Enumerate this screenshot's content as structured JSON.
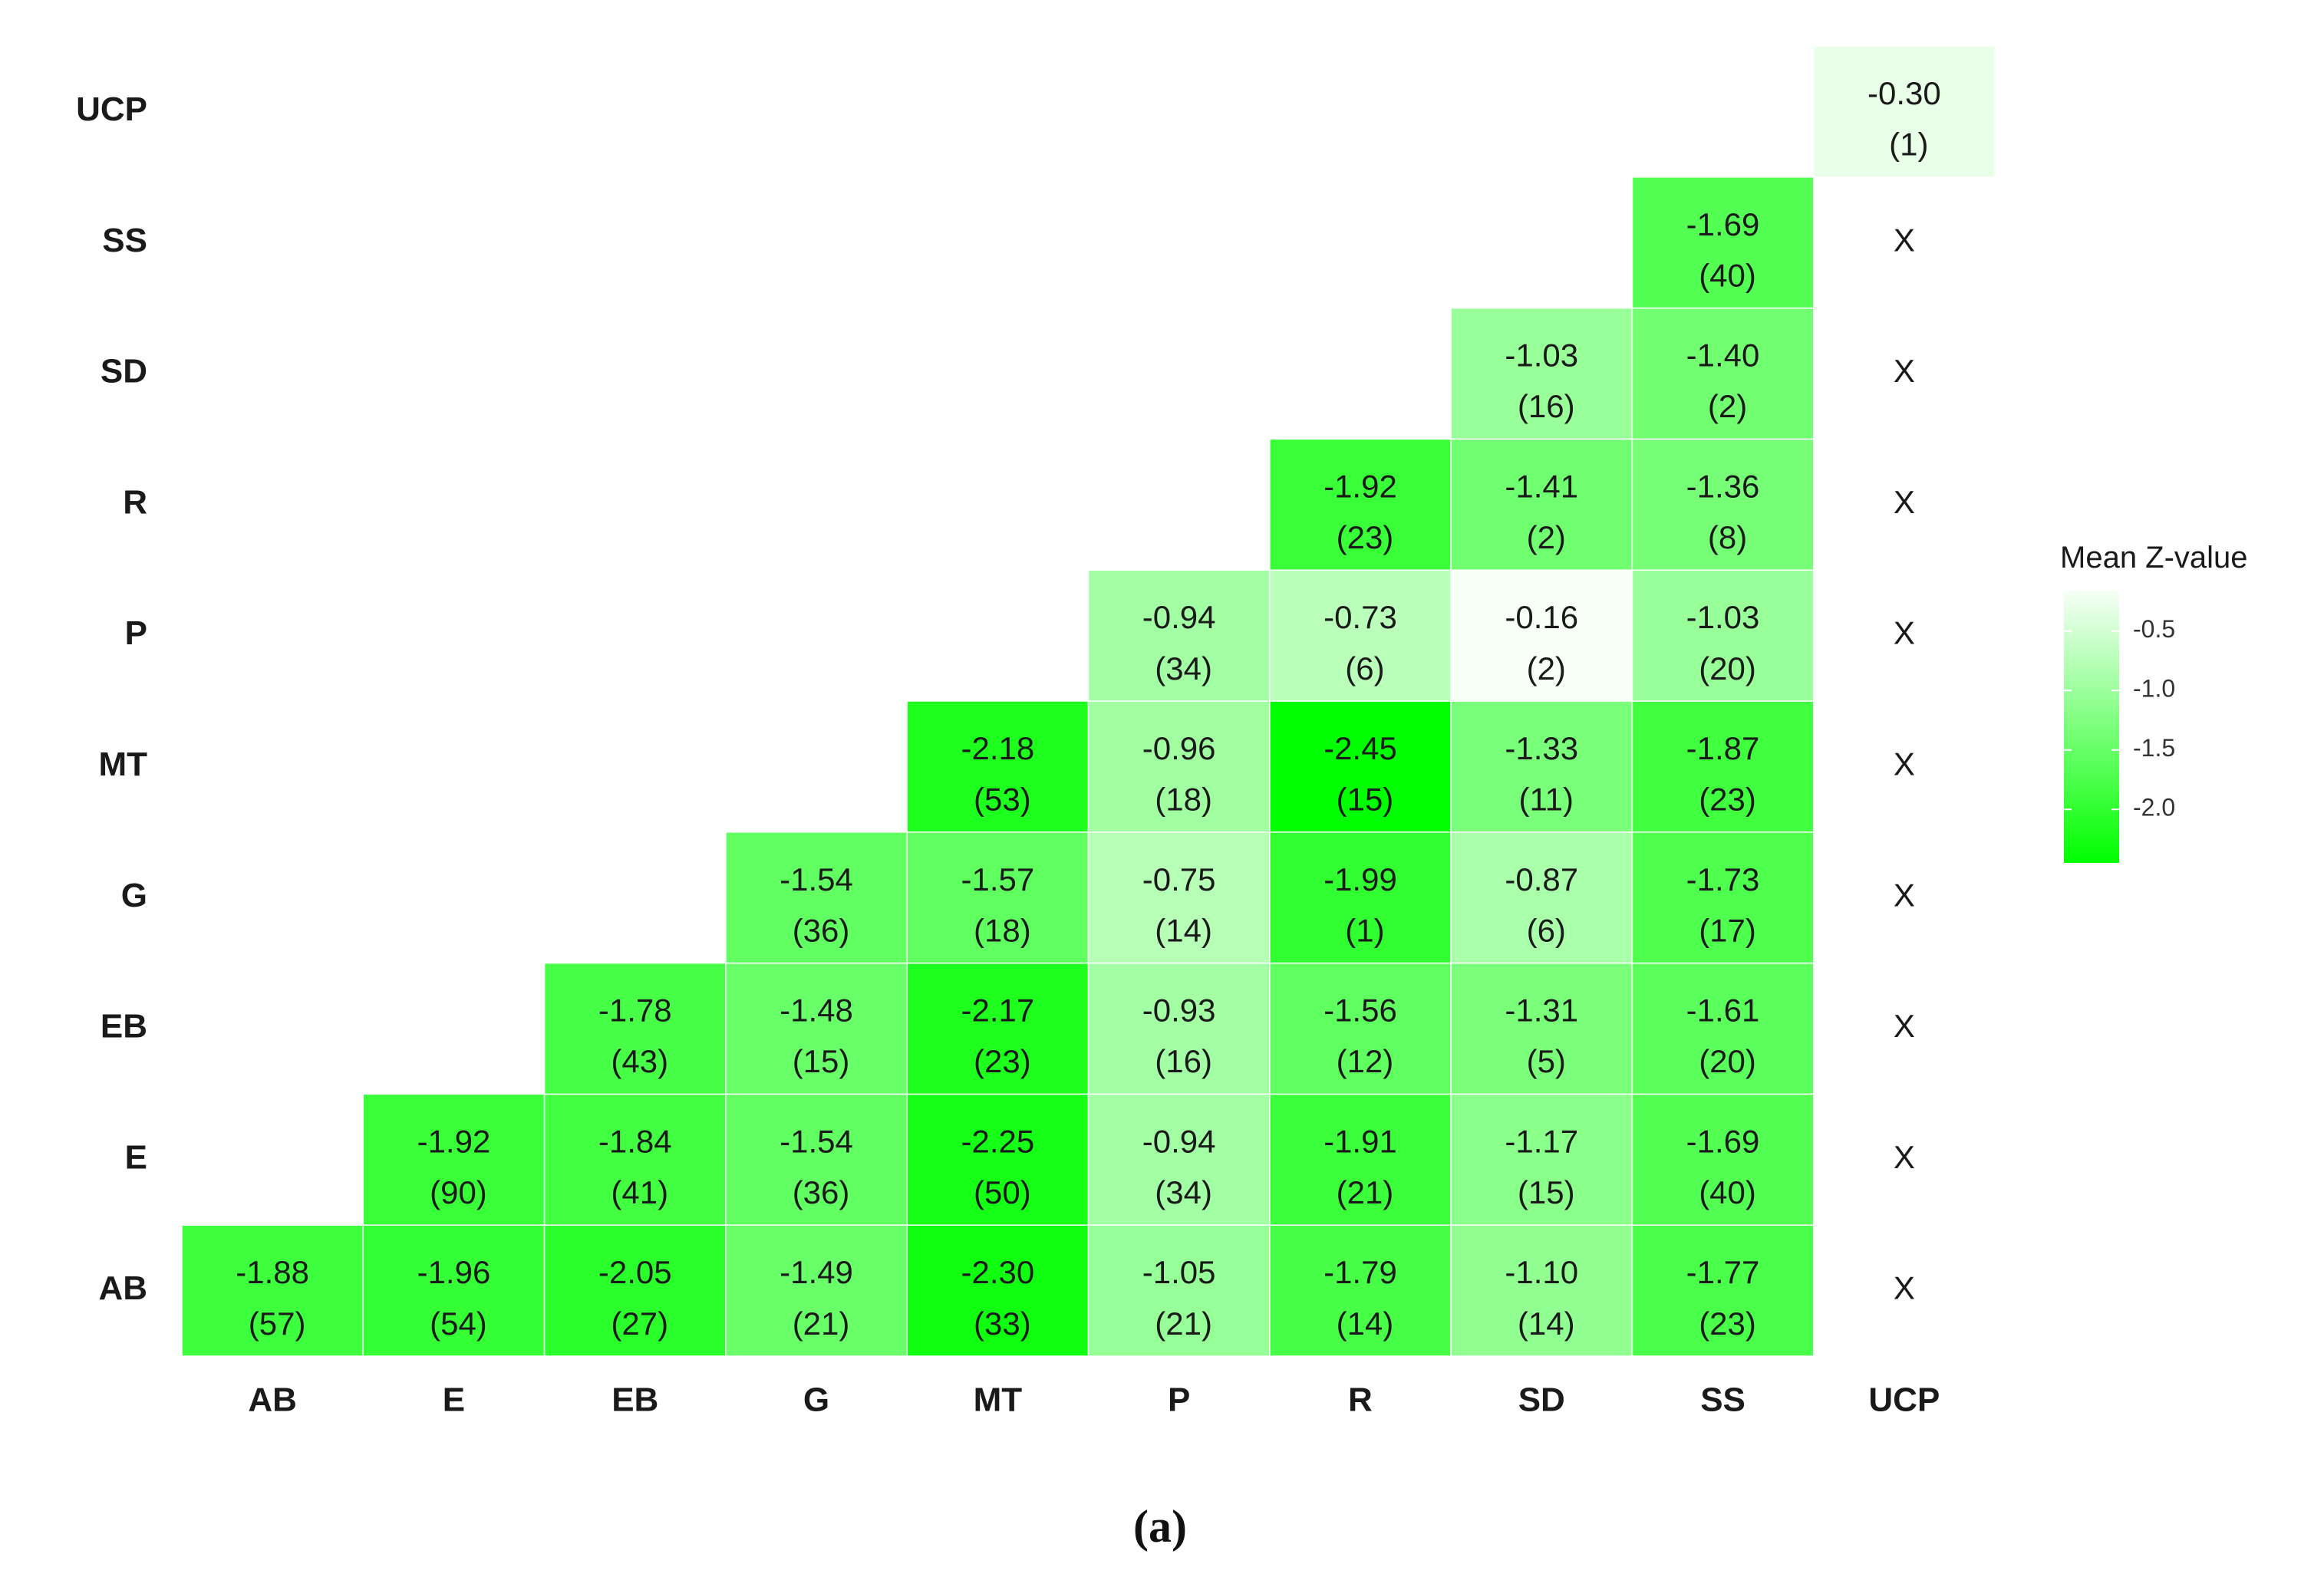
{
  "chart_data": {
    "type": "heatmap",
    "xlabel": "",
    "ylabel": "",
    "categories": [
      "AB",
      "E",
      "EB",
      "G",
      "MT",
      "P",
      "R",
      "SD",
      "SS",
      "UCP"
    ],
    "cells": [
      {
        "x": "AB",
        "y": "AB",
        "value": -1.88,
        "count": 57
      },
      {
        "x": "E",
        "y": "AB",
        "value": -1.96,
        "count": 54
      },
      {
        "x": "EB",
        "y": "AB",
        "value": -2.05,
        "count": 27
      },
      {
        "x": "G",
        "y": "AB",
        "value": -1.49,
        "count": 21
      },
      {
        "x": "MT",
        "y": "AB",
        "value": -2.3,
        "count": 33
      },
      {
        "x": "P",
        "y": "AB",
        "value": -1.05,
        "count": 21
      },
      {
        "x": "R",
        "y": "AB",
        "value": -1.79,
        "count": 14
      },
      {
        "x": "SD",
        "y": "AB",
        "value": -1.1,
        "count": 14
      },
      {
        "x": "SS",
        "y": "AB",
        "value": -1.77,
        "count": 23
      },
      {
        "x": "E",
        "y": "E",
        "value": -1.92,
        "count": 90
      },
      {
        "x": "EB",
        "y": "E",
        "value": -1.84,
        "count": 41
      },
      {
        "x": "G",
        "y": "E",
        "value": -1.54,
        "count": 36
      },
      {
        "x": "MT",
        "y": "E",
        "value": -2.25,
        "count": 50
      },
      {
        "x": "P",
        "y": "E",
        "value": -0.94,
        "count": 34
      },
      {
        "x": "R",
        "y": "E",
        "value": -1.91,
        "count": 21
      },
      {
        "x": "SD",
        "y": "E",
        "value": -1.17,
        "count": 15
      },
      {
        "x": "SS",
        "y": "E",
        "value": -1.69,
        "count": 40
      },
      {
        "x": "EB",
        "y": "EB",
        "value": -1.78,
        "count": 43
      },
      {
        "x": "G",
        "y": "EB",
        "value": -1.48,
        "count": 15
      },
      {
        "x": "MT",
        "y": "EB",
        "value": -2.17,
        "count": 23
      },
      {
        "x": "P",
        "y": "EB",
        "value": -0.93,
        "count": 16
      },
      {
        "x": "R",
        "y": "EB",
        "value": -1.56,
        "count": 12
      },
      {
        "x": "SD",
        "y": "EB",
        "value": -1.31,
        "count": 5
      },
      {
        "x": "SS",
        "y": "EB",
        "value": -1.61,
        "count": 20
      },
      {
        "x": "G",
        "y": "G",
        "value": -1.54,
        "count": 36
      },
      {
        "x": "MT",
        "y": "G",
        "value": -1.57,
        "count": 18
      },
      {
        "x": "P",
        "y": "G",
        "value": -0.75,
        "count": 14
      },
      {
        "x": "R",
        "y": "G",
        "value": -1.99,
        "count": 1
      },
      {
        "x": "SD",
        "y": "G",
        "value": -0.87,
        "count": 6
      },
      {
        "x": "SS",
        "y": "G",
        "value": -1.73,
        "count": 17
      },
      {
        "x": "MT",
        "y": "MT",
        "value": -2.18,
        "count": 53
      },
      {
        "x": "P",
        "y": "MT",
        "value": -0.96,
        "count": 18
      },
      {
        "x": "R",
        "y": "MT",
        "value": -2.45,
        "count": 15
      },
      {
        "x": "SD",
        "y": "MT",
        "value": -1.33,
        "count": 11
      },
      {
        "x": "SS",
        "y": "MT",
        "value": -1.87,
        "count": 23
      },
      {
        "x": "P",
        "y": "P",
        "value": -0.94,
        "count": 34
      },
      {
        "x": "R",
        "y": "P",
        "value": -0.73,
        "count": 6
      },
      {
        "x": "SD",
        "y": "P",
        "value": -0.16,
        "count": 2
      },
      {
        "x": "SS",
        "y": "P",
        "value": -1.03,
        "count": 20
      },
      {
        "x": "R",
        "y": "R",
        "value": -1.92,
        "count": 23
      },
      {
        "x": "SD",
        "y": "R",
        "value": -1.41,
        "count": 2
      },
      {
        "x": "SS",
        "y": "R",
        "value": -1.36,
        "count": 8
      },
      {
        "x": "SD",
        "y": "SD",
        "value": -1.03,
        "count": 16
      },
      {
        "x": "SS",
        "y": "SD",
        "value": -1.4,
        "count": 2
      },
      {
        "x": "SS",
        "y": "SS",
        "value": -1.69,
        "count": 40
      },
      {
        "x": "UCP",
        "y": "UCP",
        "value": -0.3,
        "count": 1
      }
    ],
    "missing_cells": [
      {
        "x": "UCP",
        "y": "AB",
        "text": "X"
      },
      {
        "x": "UCP",
        "y": "E",
        "text": "X"
      },
      {
        "x": "UCP",
        "y": "EB",
        "text": "X"
      },
      {
        "x": "UCP",
        "y": "G",
        "text": "X"
      },
      {
        "x": "UCP",
        "y": "MT",
        "text": "X"
      },
      {
        "x": "UCP",
        "y": "P",
        "text": "X"
      },
      {
        "x": "UCP",
        "y": "R",
        "text": "X"
      },
      {
        "x": "UCP",
        "y": "SD",
        "text": "X"
      },
      {
        "x": "UCP",
        "y": "SS",
        "text": "X"
      }
    ],
    "legend": {
      "title": "Mean Z-value",
      "placement": "right",
      "ticks": [
        "-0.5",
        "-1.0",
        "-1.5",
        "-2.0"
      ],
      "tick_values": [
        -0.5,
        -1.0,
        -1.5,
        -2.0
      ],
      "range": [
        -2.45,
        -0.16
      ],
      "color_low": "#00ff00",
      "color_high": "#f7fff7"
    },
    "grid": false,
    "panel_label": "(a)"
  }
}
